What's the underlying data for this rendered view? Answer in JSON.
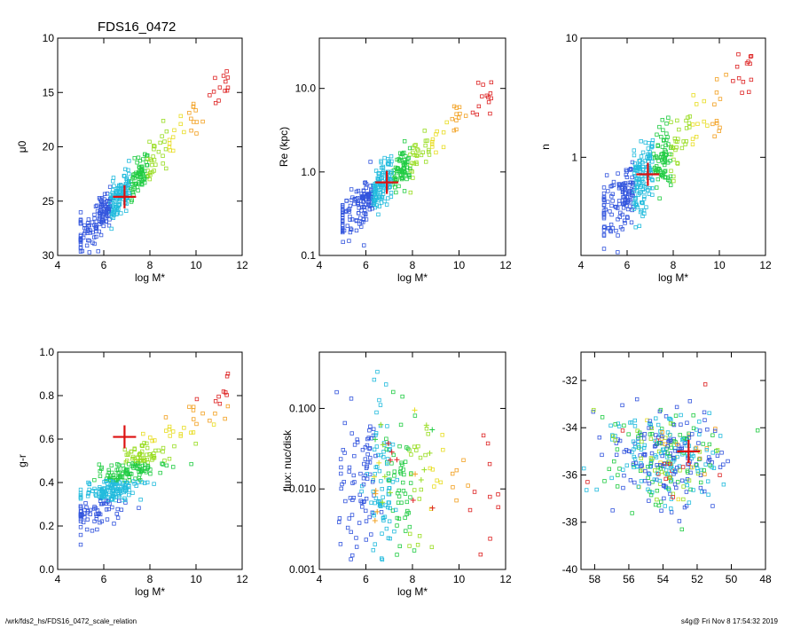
{
  "title": "FDS16_0472",
  "footer": {
    "path": "/wrk/fds2_hs/FDS16_0472_scale_relation",
    "stamp": "s4g@  Fri Nov  8 17:54:32 2019"
  },
  "chart_data": [
    {
      "type": "scatter",
      "xlabel": "log M*",
      "ylabel": "μ0",
      "xlim": [
        4,
        12
      ],
      "ylim": [
        30,
        10
      ],
      "xticks": [
        "4",
        "6",
        "8",
        "10",
        "12"
      ],
      "yticks": [
        "10",
        "15",
        "20",
        "25",
        "30"
      ],
      "marker": {
        "x": 6.9,
        "y": 24.6
      },
      "n_points": 380
    },
    {
      "type": "scatter",
      "xlabel": "log M*",
      "ylabel": "Re (kpc)",
      "yscale": "log",
      "xlim": [
        4,
        12
      ],
      "ylim": [
        0.1,
        40
      ],
      "xticks": [
        "4",
        "6",
        "8",
        "10",
        "12"
      ],
      "yticks": [
        "0.1",
        "1.0",
        "10.0"
      ],
      "marker": {
        "x": 6.9,
        "y": 0.75
      },
      "n_points": 380
    },
    {
      "type": "scatter",
      "xlabel": "log M*",
      "ylabel": "n",
      "yscale": "log",
      "xlim": [
        4,
        12
      ],
      "ylim": [
        0.15,
        10
      ],
      "xticks": [
        "4",
        "6",
        "8",
        "10",
        "12"
      ],
      "yticks": [
        "1",
        "10"
      ],
      "marker": {
        "x": 6.9,
        "y": 0.72
      },
      "n_points": 380
    },
    {
      "type": "scatter",
      "xlabel": "log M*",
      "ylabel": "g-r",
      "xlim": [
        4,
        12
      ],
      "ylim": [
        0.0,
        1.0
      ],
      "xticks": [
        "4",
        "6",
        "8",
        "10",
        "12"
      ],
      "yticks": [
        "0.0",
        "0.2",
        "0.4",
        "0.6",
        "0.8",
        "1.0"
      ],
      "marker": {
        "x": 6.9,
        "y": 0.61
      },
      "n_points": 380
    },
    {
      "type": "scatter",
      "xlabel": "log M*",
      "ylabel": "flux: nuc/disk",
      "yscale": "log",
      "xlim": [
        4,
        12
      ],
      "ylim": [
        0.001,
        0.5
      ],
      "xticks": [
        "4",
        "6",
        "8",
        "10",
        "12"
      ],
      "yticks": [
        "0.001",
        "0.010",
        "0.100"
      ],
      "n_points": 260
    },
    {
      "type": "scatter",
      "xlabel": "",
      "ylabel": "",
      "xlim": [
        58.8,
        48
      ],
      "ylim": [
        -40,
        -30.8
      ],
      "xticks": [
        "58",
        "56",
        "54",
        "52",
        "50",
        "48"
      ],
      "yticks": [
        "-40",
        "-38",
        "-36",
        "-34",
        "-32"
      ],
      "marker": {
        "x": 52.5,
        "y": -35.0
      },
      "n_points": 380
    }
  ]
}
